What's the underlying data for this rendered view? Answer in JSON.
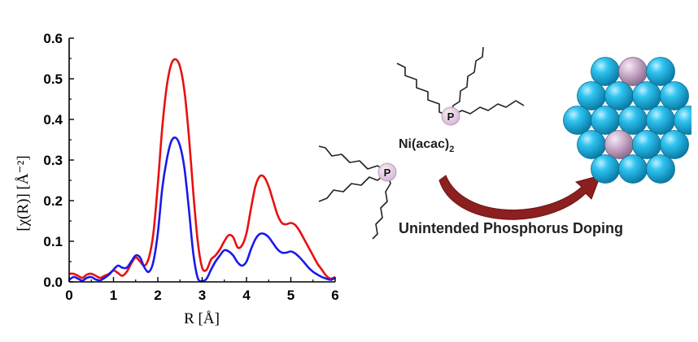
{
  "chart_data": {
    "type": "line",
    "title": "",
    "xlabel": "R [Å]",
    "ylabel": "[χ(R)] [Å⁻²]",
    "xlim": [
      0,
      6
    ],
    "ylim": [
      0,
      0.6
    ],
    "xticks": [
      "0",
      "1",
      "2",
      "3",
      "4",
      "5",
      "6"
    ],
    "yticks": [
      "0.0",
      "0.1",
      "0.2",
      "0.3",
      "0.4",
      "0.5",
      "0.6"
    ],
    "grid": false,
    "series": [
      {
        "color": "#e81010",
        "x": [
          0.0,
          0.1,
          0.2,
          0.3,
          0.4,
          0.5,
          0.6,
          0.7,
          0.8,
          0.9,
          1.0,
          1.1,
          1.2,
          1.3,
          1.4,
          1.5,
          1.6,
          1.7,
          1.8,
          1.9,
          2.0,
          2.1,
          2.2,
          2.3,
          2.4,
          2.5,
          2.6,
          2.7,
          2.8,
          2.9,
          3.0,
          3.1,
          3.2,
          3.3,
          3.4,
          3.5,
          3.6,
          3.7,
          3.8,
          3.9,
          4.0,
          4.1,
          4.2,
          4.3,
          4.4,
          4.5,
          4.6,
          4.7,
          4.8,
          4.9,
          5.0,
          5.1,
          5.2,
          5.3,
          5.4,
          5.5,
          5.6,
          5.7,
          5.8,
          5.9,
          6.0
        ],
        "values": [
          0.02,
          0.02,
          0.015,
          0.01,
          0.018,
          0.02,
          0.015,
          0.01,
          0.015,
          0.02,
          0.028,
          0.022,
          0.015,
          0.025,
          0.045,
          0.06,
          0.05,
          0.04,
          0.06,
          0.12,
          0.24,
          0.38,
          0.48,
          0.535,
          0.548,
          0.53,
          0.47,
          0.36,
          0.22,
          0.1,
          0.035,
          0.03,
          0.055,
          0.065,
          0.08,
          0.1,
          0.115,
          0.11,
          0.085,
          0.09,
          0.12,
          0.18,
          0.235,
          0.26,
          0.258,
          0.235,
          0.2,
          0.165,
          0.145,
          0.142,
          0.145,
          0.14,
          0.125,
          0.105,
          0.085,
          0.065,
          0.045,
          0.03,
          0.015,
          0.008,
          0.012
        ]
      },
      {
        "color": "#1a1ae8",
        "x": [
          0.0,
          0.1,
          0.2,
          0.3,
          0.4,
          0.5,
          0.6,
          0.7,
          0.8,
          0.9,
          1.0,
          1.1,
          1.2,
          1.3,
          1.4,
          1.5,
          1.6,
          1.7,
          1.8,
          1.9,
          2.0,
          2.1,
          2.2,
          2.3,
          2.4,
          2.5,
          2.6,
          2.7,
          2.8,
          2.9,
          3.0,
          3.1,
          3.2,
          3.3,
          3.4,
          3.5,
          3.6,
          3.7,
          3.8,
          3.9,
          4.0,
          4.1,
          4.2,
          4.3,
          4.4,
          4.5,
          4.6,
          4.7,
          4.8,
          4.9,
          5.0,
          5.1,
          5.2,
          5.3,
          5.4,
          5.5,
          5.6,
          5.7,
          5.8,
          5.9,
          6.0
        ],
        "values": [
          0.005,
          0.012,
          0.008,
          0.003,
          0.01,
          0.012,
          0.006,
          0.004,
          0.01,
          0.018,
          0.03,
          0.04,
          0.035,
          0.035,
          0.05,
          0.065,
          0.06,
          0.035,
          0.025,
          0.05,
          0.12,
          0.23,
          0.3,
          0.345,
          0.355,
          0.335,
          0.28,
          0.18,
          0.07,
          0.01,
          0.002,
          0.008,
          0.03,
          0.05,
          0.065,
          0.078,
          0.075,
          0.065,
          0.048,
          0.04,
          0.05,
          0.08,
          0.105,
          0.118,
          0.118,
          0.11,
          0.095,
          0.08,
          0.072,
          0.072,
          0.075,
          0.07,
          0.06,
          0.048,
          0.035,
          0.025,
          0.018,
          0.012,
          0.008,
          0.005,
          0.01
        ]
      }
    ]
  },
  "scheme": {
    "reagent_label": "Ni(acac)",
    "reagent_subscript": "2",
    "phosphorus_symbol": "P",
    "caption": "Unintended Phosphorus Doping",
    "sphere_color": "#1fb3e0",
    "dopant_color": "#c9a8c9",
    "arrow_color": "#8c1f1f"
  }
}
